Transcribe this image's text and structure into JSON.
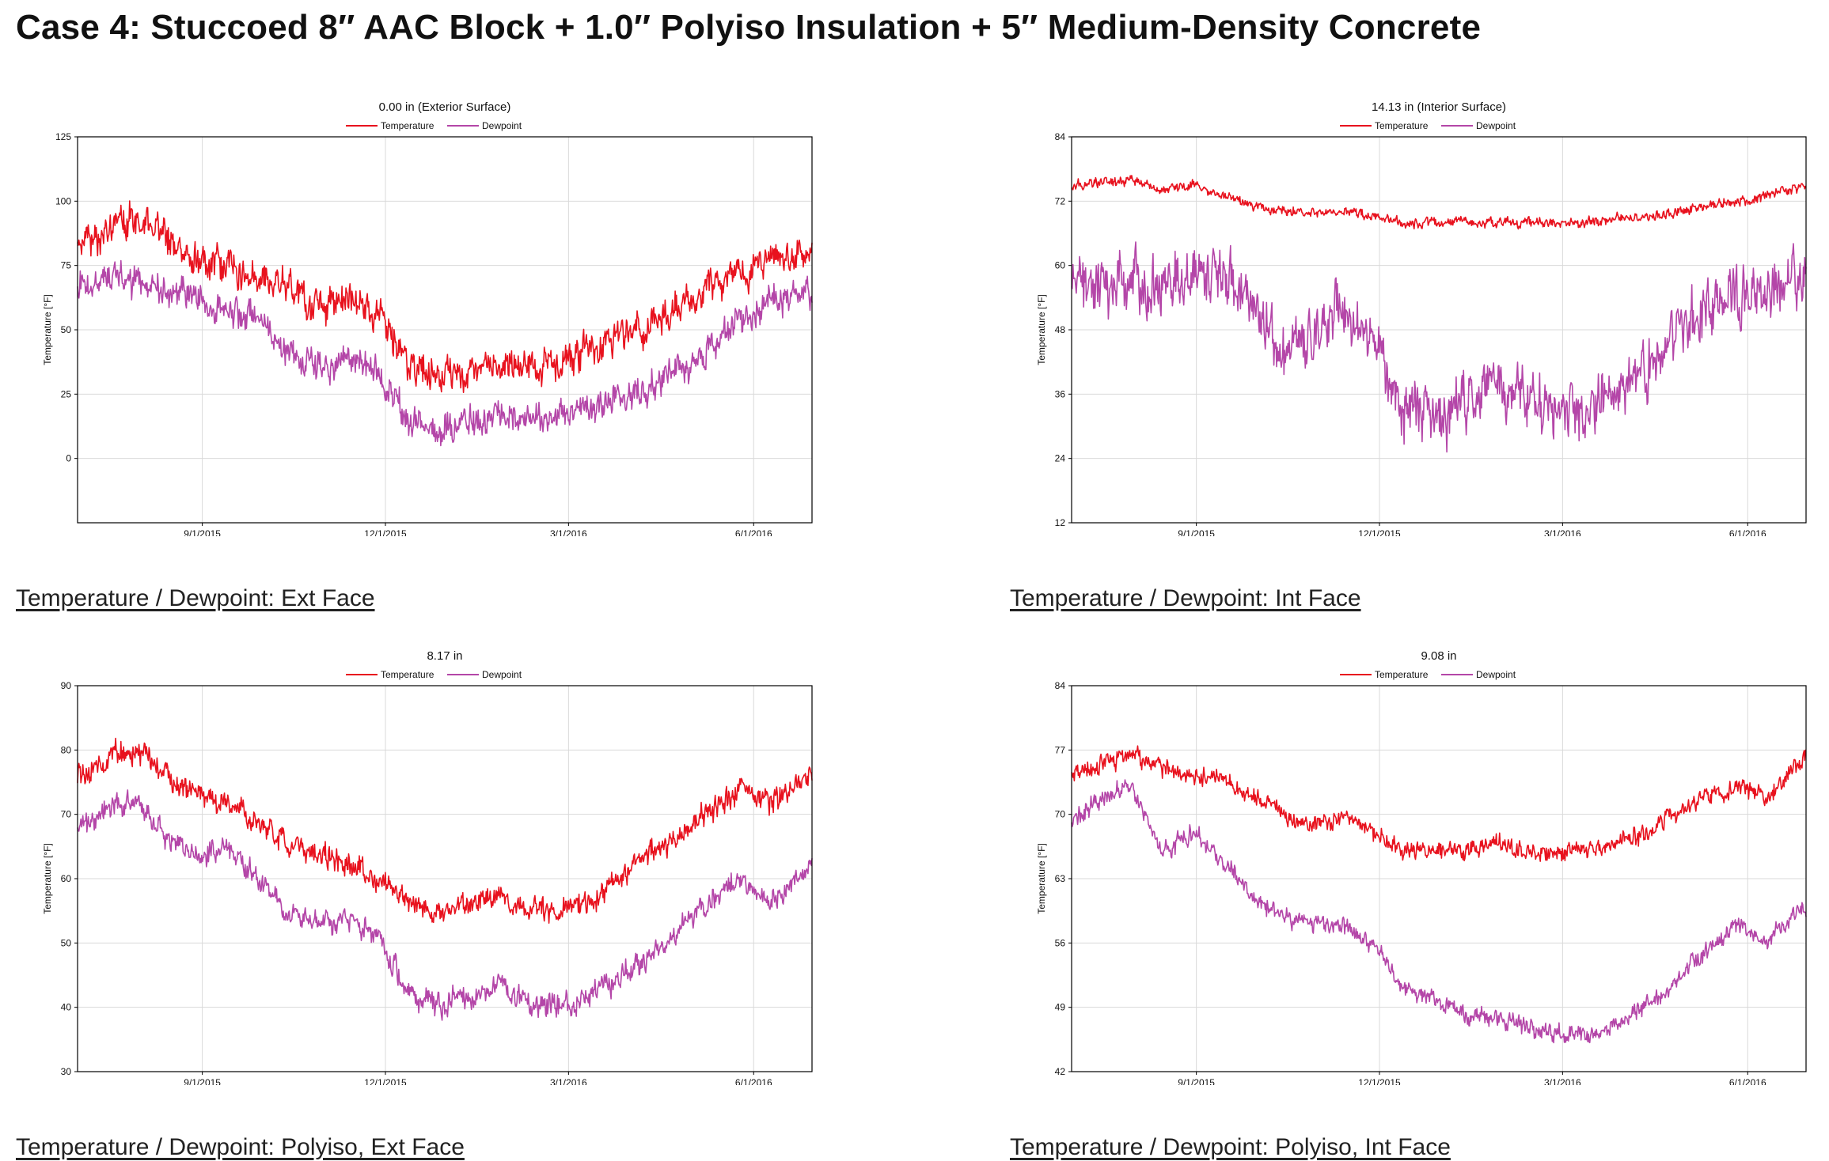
{
  "title": "Case 4: Stuccoed 8″ AAC Block + 1.0″ Polyiso Insulation + 5″ Medium-Density Concrete",
  "colors": {
    "temperature": "#e8121e",
    "dewpoint": "#b446a8",
    "grid": "#d9d9d9",
    "axis": "#000000"
  },
  "chart_data": [
    {
      "type": "line",
      "title": "0.00 in (Exterior Surface)",
      "caption": "Temperature / Dewpoint: Ext Face",
      "ylabel": "Temperature [°F]",
      "xlabel": "",
      "ylim": [
        -25,
        125
      ],
      "yticks": [
        0,
        25,
        50,
        75,
        100,
        125
      ],
      "ytick_labels": [
        "0",
        "25",
        "50",
        "75",
        "100",
        "125"
      ],
      "xlim_days": [
        0,
        365
      ],
      "xticks": [
        {
          "day": 62,
          "label": "9/1/2015"
        },
        {
          "day": 153,
          "label": "12/1/2015"
        },
        {
          "day": 244,
          "label": "3/1/2016"
        },
        {
          "day": 336,
          "label": "6/1/2016"
        }
      ],
      "legend": {
        "position": "top-center",
        "entries": [
          "Temperature",
          "Dewpoint"
        ]
      },
      "grid": true,
      "x_days": [
        0,
        15,
        30,
        45,
        60,
        75,
        90,
        105,
        120,
        135,
        150,
        165,
        180,
        195,
        210,
        225,
        240,
        255,
        270,
        285,
        300,
        315,
        330,
        345,
        365
      ],
      "series": [
        {
          "name": "Temperature",
          "noise": 9,
          "values": [
            82,
            88,
            92,
            86,
            78,
            73,
            72,
            66,
            60,
            62,
            56,
            36,
            32,
            35,
            37,
            34,
            38,
            42,
            48,
            52,
            60,
            66,
            74,
            76,
            78
          ]
        },
        {
          "name": "Dewpoint",
          "noise": 8,
          "values": [
            68,
            70,
            68,
            66,
            60,
            58,
            55,
            42,
            34,
            38,
            33,
            15,
            12,
            14,
            17,
            14,
            17,
            20,
            24,
            28,
            34,
            44,
            54,
            60,
            64
          ]
        }
      ]
    },
    {
      "type": "line",
      "title": "14.13 in (Interior Surface)",
      "caption": "Temperature / Dewpoint: Int Face",
      "ylabel": "Temperature [°F]",
      "xlabel": "",
      "ylim": [
        12,
        84
      ],
      "yticks": [
        12,
        24,
        36,
        48,
        60,
        72,
        84
      ],
      "ytick_labels": [
        "12",
        "24",
        "36",
        "48",
        "60",
        "72",
        "84"
      ],
      "xlim_days": [
        0,
        365
      ],
      "xticks": [
        {
          "day": 62,
          "label": "9/1/2015"
        },
        {
          "day": 153,
          "label": "12/1/2015"
        },
        {
          "day": 244,
          "label": "3/1/2016"
        },
        {
          "day": 336,
          "label": "6/1/2016"
        }
      ],
      "legend": {
        "position": "top-center",
        "entries": [
          "Temperature",
          "Dewpoint"
        ]
      },
      "grid": true,
      "x_days": [
        0,
        15,
        30,
        45,
        60,
        75,
        90,
        105,
        120,
        135,
        150,
        165,
        180,
        195,
        210,
        225,
        240,
        255,
        270,
        285,
        300,
        315,
        330,
        345,
        365
      ],
      "series": [
        {
          "name": "Temperature",
          "noise": 1.2,
          "values": [
            75,
            75.5,
            76,
            74,
            75,
            73,
            71,
            70,
            70,
            70,
            69,
            68,
            68,
            68,
            68,
            68,
            68,
            68,
            68.5,
            69,
            70,
            71,
            72,
            73,
            75
          ]
        },
        {
          "name": "Dewpoint",
          "noise": 7,
          "values": [
            57,
            57,
            57,
            57,
            57,
            60,
            52,
            42,
            48,
            52,
            47,
            33,
            32,
            35,
            38,
            36,
            34,
            33,
            36,
            40,
            47,
            52,
            54,
            56,
            57
          ]
        }
      ]
    },
    {
      "type": "line",
      "title": "8.17 in",
      "caption": "Temperature / Dewpoint: Polyiso, Ext Face",
      "ylabel": "Temperature [°F]",
      "xlabel": "",
      "ylim": [
        30,
        90
      ],
      "yticks": [
        30,
        40,
        50,
        60,
        70,
        80,
        90
      ],
      "ytick_labels": [
        "30",
        "40",
        "50",
        "60",
        "70",
        "80",
        "90"
      ],
      "xlim_days": [
        0,
        365
      ],
      "xticks": [
        {
          "day": 62,
          "label": "9/1/2015"
        },
        {
          "day": 153,
          "label": "12/1/2015"
        },
        {
          "day": 244,
          "label": "3/1/2016"
        },
        {
          "day": 336,
          "label": "6/1/2016"
        }
      ],
      "legend": {
        "position": "top-center",
        "entries": [
          "Temperature",
          "Dewpoint"
        ]
      },
      "grid": true,
      "x_days": [
        0,
        15,
        30,
        45,
        60,
        75,
        90,
        105,
        120,
        135,
        150,
        165,
        180,
        195,
        210,
        225,
        240,
        255,
        270,
        285,
        300,
        315,
        330,
        345,
        365
      ],
      "series": [
        {
          "name": "Temperature",
          "noise": 2.5,
          "values": [
            76,
            79,
            80,
            76,
            73,
            72,
            69,
            65,
            64,
            62,
            60,
            56,
            55,
            56,
            57,
            55,
            55,
            57,
            60,
            64,
            67,
            71,
            74,
            72,
            76
          ]
        },
        {
          "name": "Dewpoint",
          "noise": 2.5,
          "values": [
            68,
            71,
            72,
            66,
            64,
            65,
            60,
            55,
            53,
            54,
            50,
            42,
            40,
            42,
            43,
            41,
            40,
            42,
            45,
            48,
            52,
            57,
            60,
            56,
            62
          ]
        }
      ]
    },
    {
      "type": "line",
      "title": "9.08 in",
      "caption": "Temperature / Dewpoint: Polyiso, Int Face",
      "ylabel": "Temperature [°F]",
      "xlabel": "",
      "ylim": [
        42,
        84
      ],
      "yticks": [
        42,
        49,
        56,
        63,
        70,
        77,
        84
      ],
      "ytick_labels": [
        "42",
        "49",
        "56",
        "63",
        "70",
        "77",
        "84"
      ],
      "xlim_days": [
        0,
        365
      ],
      "xticks": [
        {
          "day": 62,
          "label": "9/1/2015"
        },
        {
          "day": 153,
          "label": "12/1/2015"
        },
        {
          "day": 244,
          "label": "3/1/2016"
        },
        {
          "day": 336,
          "label": "6/1/2016"
        }
      ],
      "legend": {
        "position": "top-center",
        "entries": [
          "Temperature",
          "Dewpoint"
        ]
      },
      "grid": true,
      "x_days": [
        0,
        15,
        30,
        45,
        60,
        75,
        90,
        105,
        120,
        135,
        150,
        165,
        180,
        195,
        210,
        225,
        240,
        255,
        270,
        285,
        300,
        315,
        330,
        345,
        365
      ],
      "series": [
        {
          "name": "Temperature",
          "noise": 1.3,
          "values": [
            74,
            75.5,
            76.5,
            75,
            74,
            74,
            72,
            70,
            69,
            70,
            68,
            66,
            66,
            66,
            67,
            66,
            66,
            66,
            67,
            68,
            70,
            72,
            73,
            72,
            76
          ]
        },
        {
          "name": "Dewpoint",
          "noise": 1.3,
          "values": [
            69,
            72,
            73,
            66,
            68,
            65,
            61,
            59,
            58,
            58,
            56,
            51,
            50,
            48,
            48,
            47,
            46,
            46,
            47,
            49,
            52,
            55,
            58,
            56,
            60
          ]
        }
      ]
    }
  ]
}
